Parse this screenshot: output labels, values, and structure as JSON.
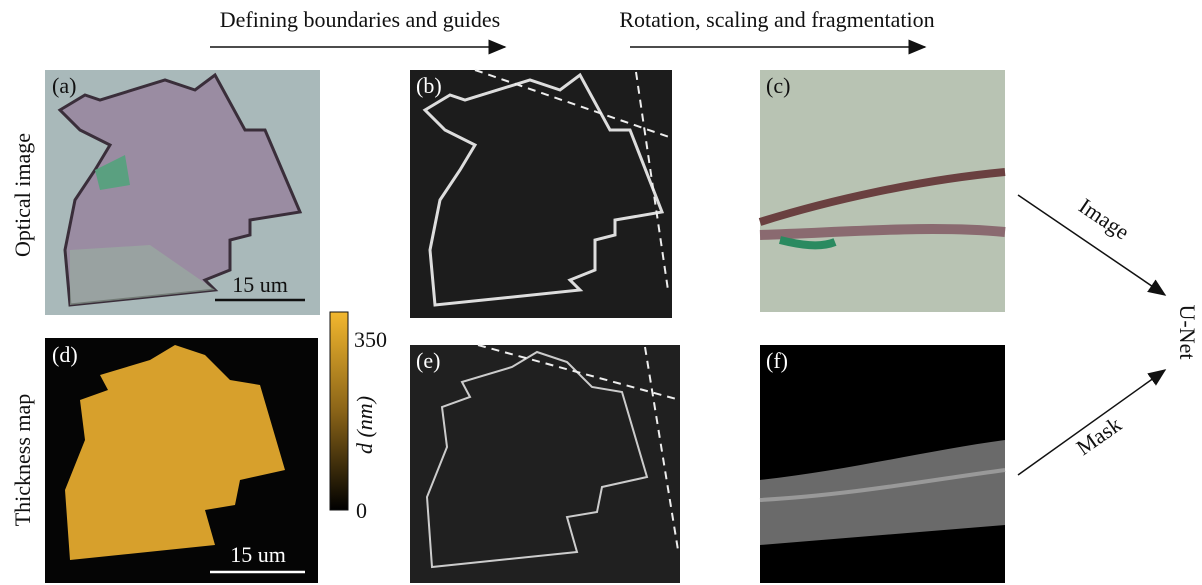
{
  "header": {
    "step1": "Defining boundaries and guides",
    "step2": "Rotation, scaling and fragmentation"
  },
  "rows": {
    "optical": "Optical image",
    "thickness": "Thickness map"
  },
  "panels": {
    "a": "(a)",
    "b": "(b)",
    "c": "(c)",
    "d": "(d)",
    "e": "(e)",
    "f": "(f)"
  },
  "scale_bars": {
    "a": "15 um",
    "d": "15 um"
  },
  "colorbar": {
    "max": "350",
    "min": "0",
    "label": "d (nm)"
  },
  "network": {
    "image": "Image",
    "mask": "Mask",
    "name": "U-Net"
  }
}
